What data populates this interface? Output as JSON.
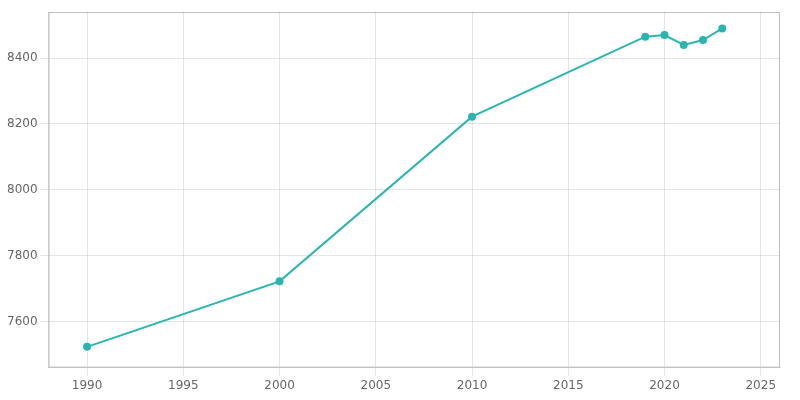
{
  "chart_data": {
    "type": "line",
    "x": [
      1990,
      2000,
      2010,
      2019,
      2020,
      2021,
      2022,
      2023
    ],
    "values": [
      7523,
      7722,
      8222,
      8465,
      8470,
      8440,
      8455,
      8490
    ],
    "color": "#2ab5b0",
    "marker": "circle",
    "xlim": [
      1988,
      2026
    ],
    "ylim": [
      7460,
      8540
    ],
    "xticks": [
      1990,
      1995,
      2000,
      2005,
      2010,
      2015,
      2020,
      2025
    ],
    "yticks": [
      7600,
      7800,
      8000,
      8200,
      8400
    ],
    "grid": true
  }
}
